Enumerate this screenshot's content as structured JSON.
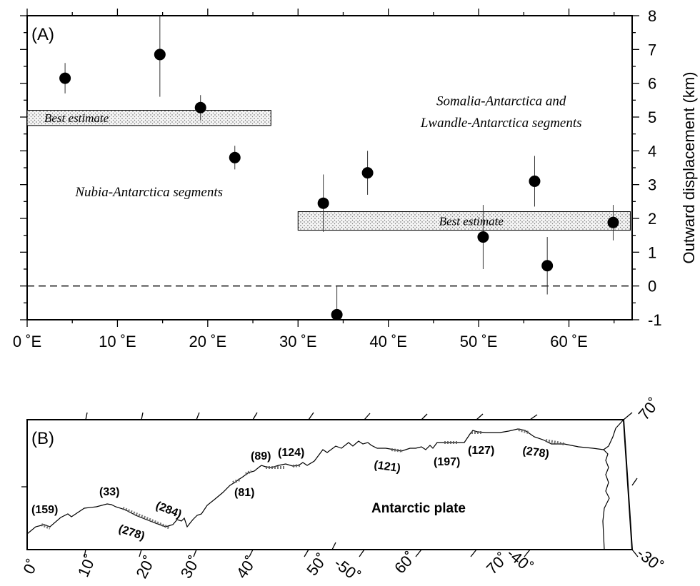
{
  "chart_data": [
    {
      "type": "scatter",
      "panel_label": "(A)",
      "ylabel": "Outward displacement (km)",
      "xlabel": "",
      "xlim": [
        0,
        67
      ],
      "ylim": [
        -1,
        8
      ],
      "x_ticks": [
        0,
        10,
        20,
        30,
        40,
        50,
        60
      ],
      "x_tick_labels": [
        "0 ˚E",
        "10 ˚E",
        "20 ˚E",
        "30 ˚E",
        "40 ˚E",
        "50 ˚E",
        "60 ˚E"
      ],
      "y_ticks": [
        -1,
        0,
        1,
        2,
        3,
        4,
        5,
        6,
        7,
        8
      ],
      "y_tick_labels": [
        "-1",
        "0",
        "1",
        "2",
        "3",
        "4",
        "5",
        "6",
        "7",
        "8"
      ],
      "zero_line": 0,
      "points": [
        {
          "x": 4.2,
          "y": 6.15,
          "err_low": 5.7,
          "err_high": 6.6
        },
        {
          "x": 14.7,
          "y": 6.85,
          "err_low": 5.6,
          "err_high": 8.0
        },
        {
          "x": 19.2,
          "y": 5.28,
          "err_low": 4.9,
          "err_high": 5.65
        },
        {
          "x": 23.0,
          "y": 3.8,
          "err_low": 3.45,
          "err_high": 4.15
        },
        {
          "x": 32.8,
          "y": 2.45,
          "err_low": 1.6,
          "err_high": 3.3
        },
        {
          "x": 34.3,
          "y": -0.85,
          "err_low": -1.0,
          "err_high": 0.0
        },
        {
          "x": 37.7,
          "y": 3.35,
          "err_low": 2.7,
          "err_high": 4.0
        },
        {
          "x": 50.5,
          "y": 1.45,
          "err_low": 0.5,
          "err_high": 2.4
        },
        {
          "x": 56.2,
          "y": 3.1,
          "err_low": 2.35,
          "err_high": 3.85
        },
        {
          "x": 57.6,
          "y": 0.6,
          "err_low": -0.25,
          "err_high": 1.45
        },
        {
          "x": 64.9,
          "y": 1.88,
          "err_low": 1.35,
          "err_high": 2.4
        }
      ],
      "best_estimates": [
        {
          "label": "Best estimate",
          "x_start": 0,
          "x_end": 27,
          "y_low": 4.75,
          "y_high": 5.2
        },
        {
          "label": "Best estimate",
          "x_start": 30,
          "x_end": 66.8,
          "y_low": 1.65,
          "y_high": 2.2
        }
      ],
      "annotations": [
        {
          "text": "Nubia-Antarctica segments",
          "x": 13.5,
          "y": 2.65
        },
        {
          "text": "Somalia-Antarctica and",
          "x": 52.5,
          "y": 5.35
        },
        {
          "text": "Lwandle-Antarctica segments",
          "x": 52.5,
          "y": 4.7
        }
      ]
    },
    {
      "type": "map",
      "panel_label": "(B)",
      "plate_label": "Antarctic plate",
      "bottom_tick_labels": [
        "0˚",
        "10˚",
        "20˚",
        "30˚",
        "40˚",
        "50˚",
        "-50˚",
        "60˚",
        "70˚",
        "-40˚",
        "-30˚"
      ],
      "corner_label": "70˚",
      "segment_labels": [
        "(159)",
        "(33)",
        "(278)",
        "(284)",
        "(81)",
        "(89)",
        "(124)",
        "(121)",
        "(197)",
        "(127)",
        "(278)"
      ]
    }
  ]
}
